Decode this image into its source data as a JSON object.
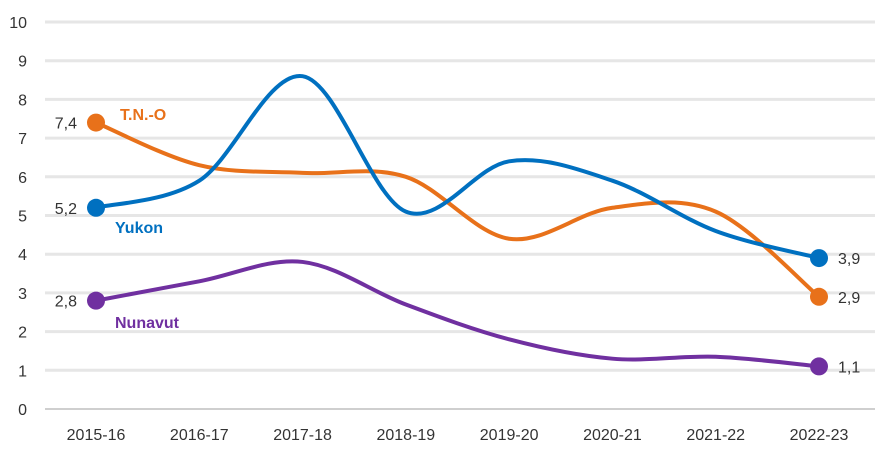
{
  "chart_data": {
    "type": "line",
    "title": "",
    "xlabel": "",
    "ylabel": "",
    "ylim": [
      0,
      10
    ],
    "yticks": [
      "0",
      "1",
      "2",
      "3",
      "4",
      "5",
      "6",
      "7",
      "8",
      "9",
      "10"
    ],
    "grid": true,
    "smooth": true,
    "categories": [
      "2015-16",
      "2016-17",
      "2017-18",
      "2018-19",
      "2019-20",
      "2020-21",
      "2021-22",
      "2022-23"
    ],
    "series": [
      {
        "name": "T.N.-O",
        "color": "#E8711A",
        "values": [
          7.4,
          6.3,
          6.1,
          6.0,
          4.4,
          5.2,
          5.1,
          2.9
        ],
        "start_label": "7,4",
        "end_label": "2,9"
      },
      {
        "name": "Yukon",
        "color": "#0070C0",
        "values": [
          5.2,
          5.9,
          8.6,
          5.1,
          6.4,
          5.9,
          4.6,
          3.9
        ],
        "start_label": "5,2",
        "end_label": "3,9"
      },
      {
        "name": "Nunavut",
        "color": "#7030A0",
        "values": [
          2.8,
          3.3,
          3.8,
          2.7,
          1.8,
          1.3,
          1.35,
          1.1
        ],
        "start_label": "2,8",
        "end_label": "1,1"
      }
    ]
  }
}
